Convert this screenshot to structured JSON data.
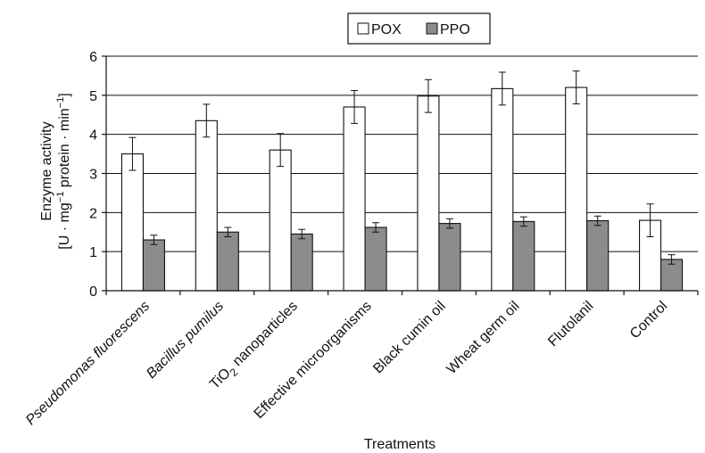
{
  "chart_data": {
    "type": "bar",
    "xlabel": "Treatments",
    "ylabel_line1": "Enzyme activity",
    "ylabel_line2_parts": [
      "[U · mg",
      "−1",
      " protein · min",
      "−1",
      "]"
    ],
    "ylim": [
      0,
      6
    ],
    "yticks": [
      "0",
      "1",
      "2",
      "3",
      "4",
      "5",
      "6"
    ],
    "grid": true,
    "legend_position": "top-center",
    "categories": [
      {
        "label": "Pseudomonas fluorescens",
        "italic": true
      },
      {
        "label": "Bacillus pumilus",
        "italic": true
      },
      {
        "label_parts": [
          "TiO",
          "2",
          " nanoparticles"
        ],
        "label": "TiO2 nanoparticles",
        "italic": false
      },
      {
        "label": "Effective microorganisms",
        "italic": false
      },
      {
        "label": "Black cumin oil",
        "italic": false
      },
      {
        "label": "Wheat germ oil",
        "italic": false
      },
      {
        "label": "Flutolanil",
        "italic": false
      },
      {
        "label": "Control",
        "italic": false
      }
    ],
    "series": [
      {
        "name": "POX",
        "color": "#ffffff",
        "values": [
          3.5,
          4.35,
          3.6,
          4.7,
          4.98,
          5.17,
          5.2,
          1.8
        ],
        "errors": [
          0.42,
          0.42,
          0.42,
          0.42,
          0.42,
          0.42,
          0.42,
          0.42
        ]
      },
      {
        "name": "PPO",
        "color": "#8c8c8c",
        "values": [
          1.3,
          1.5,
          1.45,
          1.62,
          1.72,
          1.77,
          1.79,
          0.8
        ],
        "errors": [
          0.12,
          0.12,
          0.12,
          0.12,
          0.12,
          0.12,
          0.12,
          0.12
        ]
      }
    ]
  }
}
